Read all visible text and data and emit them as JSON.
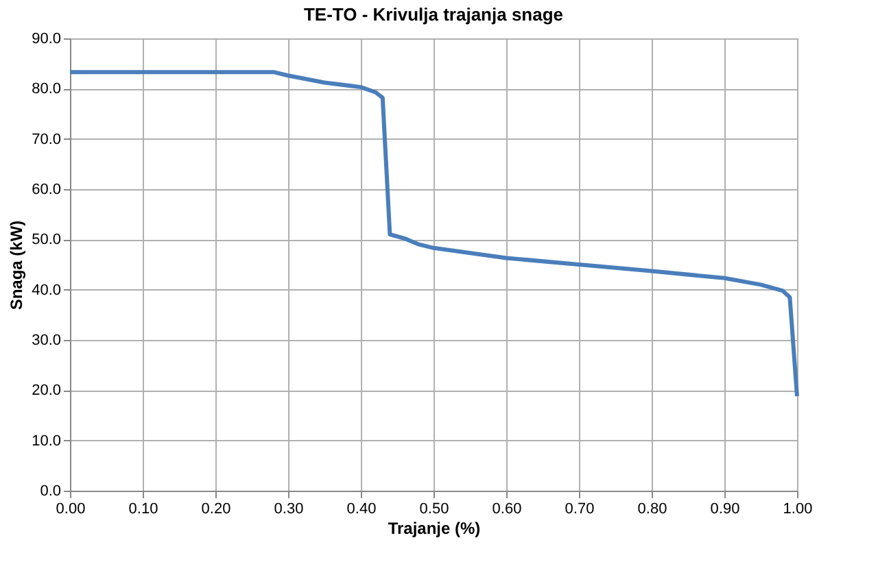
{
  "chart_data": {
    "type": "line",
    "title": "TE-TO - Krivulja trajanja snage",
    "xlabel": "Trajanje (%)",
    "ylabel": "Snaga (kW)",
    "x": [
      0,
      0.28,
      0.3,
      0.35,
      0.4,
      0.42,
      0.43,
      0.44,
      0.46,
      0.48,
      0.5,
      0.6,
      0.7,
      0.8,
      0.9,
      0.95,
      0.98,
      0.99,
      1.0
    ],
    "series": [
      {
        "color": "#4a7ebb",
        "values": [
          83.3,
          83.3,
          82.6,
          81.2,
          80.3,
          79.3,
          78.2,
          51.0,
          50.2,
          49.0,
          48.3,
          46.3,
          45.0,
          43.7,
          42.3,
          41.0,
          39.8,
          38.5,
          18.8
        ]
      }
    ],
    "xlim": [
      0,
      1
    ],
    "ylim": [
      0,
      90
    ],
    "xticks": [
      {
        "value": 0,
        "label": "0.00"
      },
      {
        "value": 0.1,
        "label": "0.10"
      },
      {
        "value": 0.2,
        "label": "0.20"
      },
      {
        "value": 0.3,
        "label": "0.30"
      },
      {
        "value": 0.4,
        "label": "0.40"
      },
      {
        "value": 0.5,
        "label": "0.50"
      },
      {
        "value": 0.6,
        "label": "0.60"
      },
      {
        "value": 0.7,
        "label": "0.70"
      },
      {
        "value": 0.8,
        "label": "0.80"
      },
      {
        "value": 0.9,
        "label": "0.90"
      },
      {
        "value": 1,
        "label": "1.00"
      }
    ],
    "yticks": [
      {
        "value": 0,
        "label": "0.0"
      },
      {
        "value": 10,
        "label": "10.0"
      },
      {
        "value": 20,
        "label": "20.0"
      },
      {
        "value": 30,
        "label": "30.0"
      },
      {
        "value": 40,
        "label": "40.0"
      },
      {
        "value": 50,
        "label": "50.0"
      },
      {
        "value": 60,
        "label": "60.0"
      },
      {
        "value": 70,
        "label": "70.0"
      },
      {
        "value": 80,
        "label": "80.0"
      },
      {
        "value": 90,
        "label": "90.0"
      }
    ],
    "grid": true,
    "marker": "none",
    "line_style": "solid"
  }
}
